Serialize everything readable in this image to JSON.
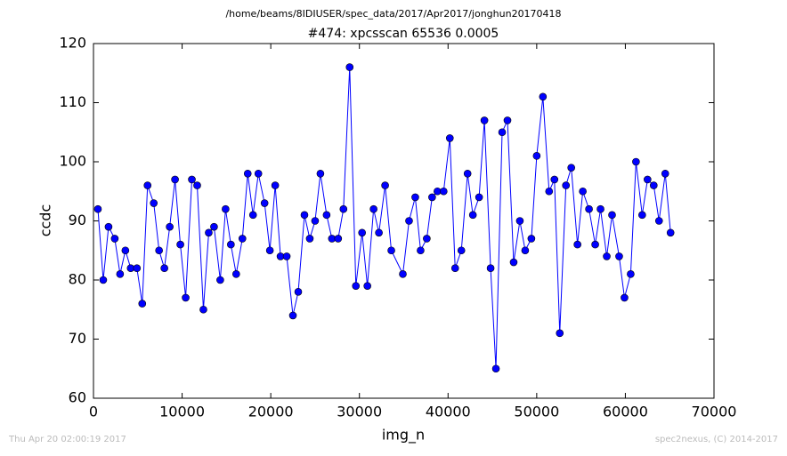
{
  "chart_data": {
    "type": "line",
    "suptitle": "/home/beams/8IDIUSER/spec_data/2017/Apr2017/jonghun20170418",
    "title": "#474: xpcsscan 65536 0.0005",
    "xlabel": "img_n",
    "ylabel": "ccdc",
    "footer_left": "Thu Apr 20 02:00:19 2017",
    "footer_right": "spec2nexus, (C) 2014-2017",
    "color": "#0000ff",
    "marker_color": "#0000ff",
    "x": [
      500,
      1100,
      1700,
      2400,
      3000,
      3600,
      4200,
      4900,
      5500,
      6100,
      6800,
      7400,
      8000,
      8600,
      9200,
      9800,
      10400,
      11100,
      11700,
      12400,
      13000,
      13600,
      14300,
      14900,
      15500,
      16100,
      16800,
      17400,
      18000,
      18600,
      19300,
      19900,
      20500,
      21100,
      21800,
      22500,
      23100,
      23800,
      24400,
      25000,
      25600,
      26300,
      26900,
      27600,
      28200,
      28900,
      29600,
      30300,
      30900,
      31600,
      32200,
      32900,
      33600,
      34900,
      35600,
      36300,
      36900,
      37600,
      38200,
      38800,
      39500,
      40200,
      40800,
      41500,
      42200,
      42800,
      43500,
      44100,
      44800,
      45400,
      46100,
      46700,
      47400,
      48100,
      48700,
      49400,
      50000,
      50700,
      51400,
      52000,
      52600,
      53300,
      53900,
      54600,
      55200,
      55900,
      56600,
      57200,
      57900,
      58500,
      59300,
      59900,
      60600,
      61200,
      61900,
      62500,
      63200,
      63800,
      64500,
      65100
    ],
    "values": [
      92,
      80,
      89,
      87,
      81,
      85,
      82,
      82,
      76,
      96,
      93,
      85,
      82,
      89,
      97,
      86,
      77,
      97,
      96,
      75,
      88,
      89,
      80,
      92,
      86,
      81,
      87,
      98,
      91,
      98,
      93,
      85,
      96,
      84,
      84,
      74,
      78,
      91,
      87,
      90,
      98,
      91,
      87,
      87,
      92,
      116,
      79,
      88,
      79,
      92,
      88,
      96,
      85,
      81,
      90,
      94,
      85,
      87,
      94,
      95,
      95,
      104,
      82,
      85,
      98,
      91,
      94,
      107,
      82,
      65,
      105,
      107,
      83,
      90,
      85,
      87,
      101,
      111,
      95,
      97,
      71,
      96,
      99,
      86,
      95,
      92,
      86,
      92,
      84,
      91,
      84,
      77,
      81,
      100,
      91,
      97,
      96,
      90,
      98,
      88
    ],
    "xlim": [
      0,
      70000
    ],
    "xticks": [
      0,
      10000,
      20000,
      30000,
      40000,
      50000,
      60000,
      70000
    ],
    "ylim": [
      60,
      120
    ],
    "yticks": [
      60,
      70,
      80,
      90,
      100,
      110,
      120
    ]
  }
}
